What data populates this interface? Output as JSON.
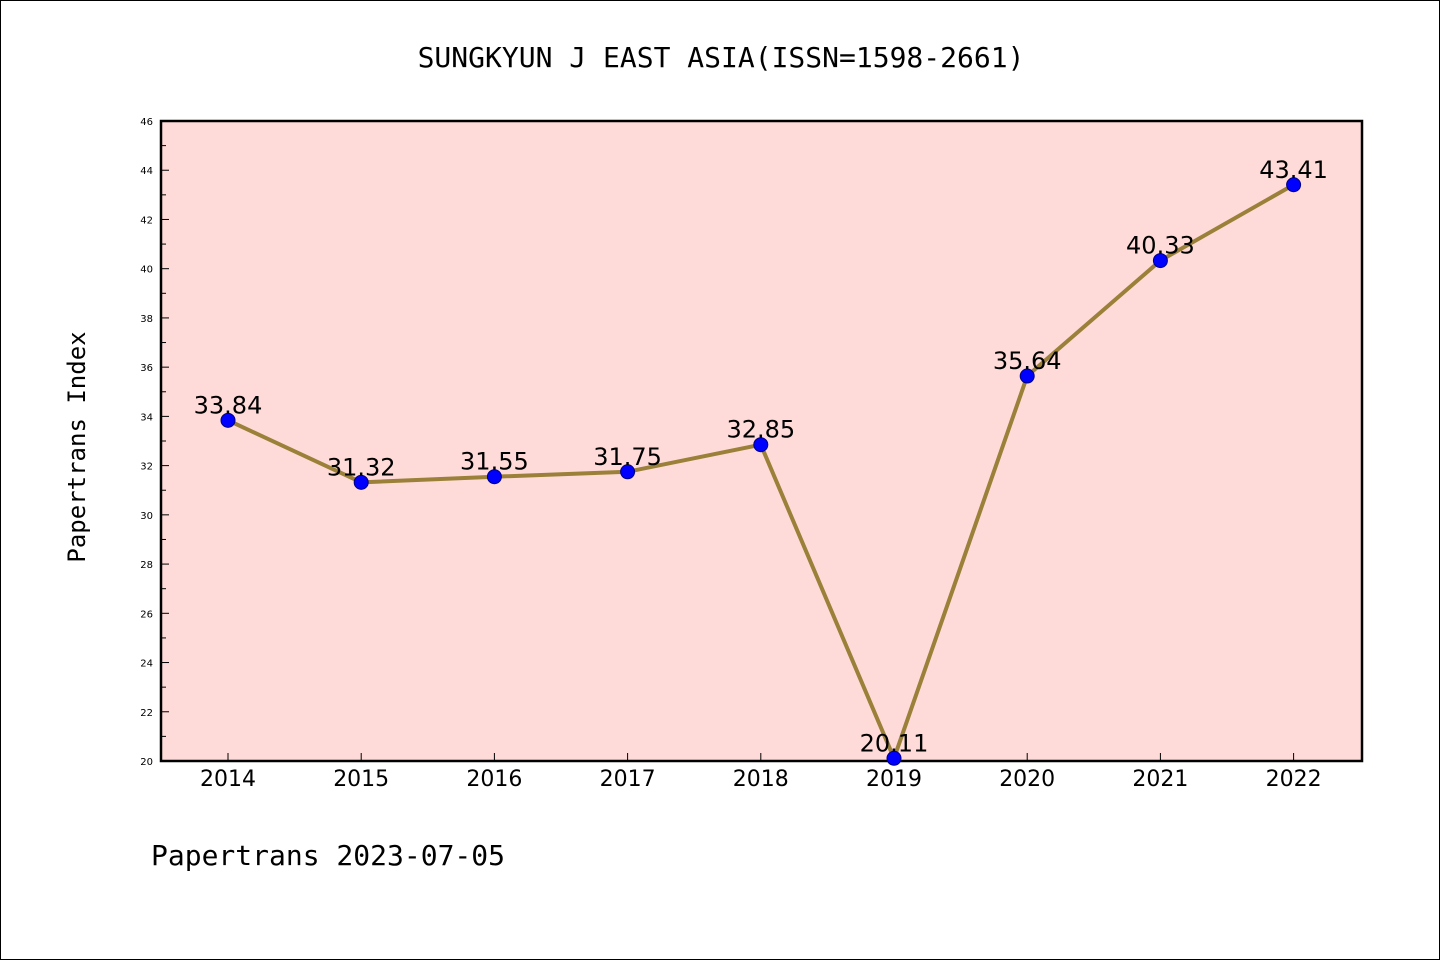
{
  "chart_data": {
    "type": "line",
    "title": "SUNGKYUN J EAST ASIA(ISSN=1598-2661)",
    "ylabel": "Papertrans Index",
    "xlabel": "",
    "footer": "Papertrans 2023-07-05",
    "categories": [
      "2014",
      "2015",
      "2016",
      "2017",
      "2018",
      "2019",
      "2020",
      "2021",
      "2022"
    ],
    "values": [
      33.84,
      31.32,
      31.55,
      31.75,
      32.85,
      20.11,
      35.64,
      40.33,
      43.41
    ],
    "data_labels": [
      "33.84",
      "31.32",
      "31.55",
      "31.75",
      "32.85",
      "20.11",
      "35.64",
      "40.33",
      "43.41"
    ],
    "ylim": [
      20,
      46
    ],
    "yticks": [
      "20",
      "22",
      "24",
      "26",
      "28",
      "30",
      "32",
      "34",
      "36",
      "38",
      "40",
      "42",
      "44",
      "46"
    ],
    "grid": false,
    "colors": {
      "plot_background": "#fedbd8",
      "line": "#9a8038",
      "marker": "#0000ff",
      "marker_edge": "#000080"
    }
  }
}
